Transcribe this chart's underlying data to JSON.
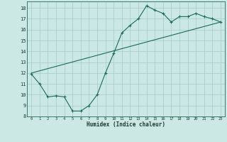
{
  "xlabel": "Humidex (Indice chaleur)",
  "bg_color": "#cce8e4",
  "grid_color": "#aacfcb",
  "line_color": "#1a6b5a",
  "xlim": [
    -0.5,
    23.5
  ],
  "ylim": [
    8,
    18.6
  ],
  "xticks": [
    0,
    1,
    2,
    3,
    4,
    5,
    6,
    7,
    8,
    9,
    10,
    11,
    12,
    13,
    14,
    15,
    16,
    17,
    18,
    19,
    20,
    21,
    22,
    23
  ],
  "yticks": [
    8,
    9,
    10,
    11,
    12,
    13,
    14,
    15,
    16,
    17,
    18
  ],
  "line1_x": [
    0,
    1,
    2,
    3,
    4,
    5,
    6,
    7,
    8,
    9,
    10,
    11,
    12,
    13,
    14,
    15,
    16,
    17,
    18,
    19,
    20,
    21,
    22,
    23
  ],
  "line1_y": [
    11.9,
    11.0,
    9.8,
    9.9,
    9.8,
    8.5,
    8.5,
    9.0,
    10.0,
    12.0,
    13.8,
    15.7,
    16.4,
    17.0,
    18.2,
    17.8,
    17.5,
    16.7,
    17.2,
    17.2,
    17.5,
    17.2,
    17.0,
    16.7
  ],
  "line2_x": [
    0,
    23
  ],
  "line2_y": [
    12.0,
    16.7
  ]
}
